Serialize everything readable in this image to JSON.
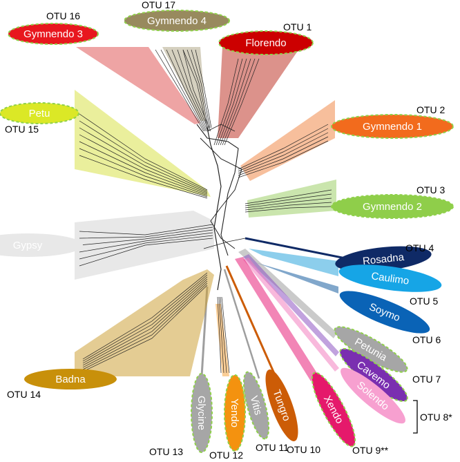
{
  "clades": [
    {
      "key": "florendo",
      "name": "Florendo",
      "otu": "OTU 1",
      "fill": "#cc0000",
      "fan": "#c0392b",
      "dashed": true
    },
    {
      "key": "gymnendo1",
      "name": "Gymnendo 1",
      "otu": "OTU 2",
      "fill": "#f26b1d",
      "fan": "#f08a4b",
      "dashed": true
    },
    {
      "key": "gymnendo2",
      "name": "Gymnendo 2",
      "otu": "OTU 3",
      "fill": "#8fce4a",
      "fan": "#9fd06a",
      "dashed": true
    },
    {
      "key": "rosadna",
      "name": "Rosadna",
      "otu": "OTU 4",
      "fill": "#0f2a66",
      "fan": "#0f2a66",
      "dashed": false
    },
    {
      "key": "caulimo",
      "name": "Caulimo",
      "otu": "",
      "fill": "#16a5e6",
      "fan": "#2da5dd",
      "dashed": false
    },
    {
      "key": "soymo",
      "name": "Soymo",
      "otu": "OTU 5",
      "fill": "#0a63b6",
      "fan": "#1a5fa0",
      "dashed": false
    },
    {
      "key": "petunia",
      "name": "Petunia",
      "otu": "OTU 6",
      "fill": "#a6a6a6",
      "fan": "#9e9e9e",
      "dashed": true
    },
    {
      "key": "cavemo",
      "name": "Cavemo",
      "otu": "OTU 7",
      "fill": "#7a2fb0",
      "fan": "#8e55c2",
      "dashed": true
    },
    {
      "key": "solendo",
      "name": "Solendo",
      "otu": "",
      "fill": "#f7a0d0",
      "fan": "#f27fc0",
      "dashed": false
    },
    {
      "key": "xendo",
      "name": "Xendo",
      "otu": "OTU 9**",
      "fill": "#e5196b",
      "fan": "#e8207a",
      "dashed": true
    },
    {
      "key": "tungro",
      "name": "Tungro",
      "otu": "OTU 10",
      "fill": "#cc5c06",
      "fan": "#cc5c06",
      "dashed": false
    },
    {
      "key": "vitis",
      "name": "Vitis",
      "otu": "OTU 11",
      "fill": "#a6a6a6",
      "fan": "#9e9e9e",
      "dashed": true
    },
    {
      "key": "yendo",
      "name": "Yendo",
      "otu": "OTU 12",
      "fill": "#f4920f",
      "fan": "#f5a640",
      "dashed": true
    },
    {
      "key": "glycine",
      "name": "Glycine",
      "otu": "OTU 13",
      "fill": "#a6a6a6",
      "fan": "#9e9e9e",
      "dashed": true
    },
    {
      "key": "badna",
      "name": "Badna",
      "otu": "OTU 14",
      "fill": "#c8900a",
      "fan": "#cda23a",
      "dashed": false
    },
    {
      "key": "gypsy",
      "name": "Gypsy",
      "otu": "",
      "fill": "#e8e8e8",
      "fan": "#d6d6d6",
      "dashed": false
    },
    {
      "key": "petu",
      "name": "Petu",
      "otu": "OTU 15",
      "fill": "#dbe826",
      "fan": "#d8e24a",
      "dashed": true
    },
    {
      "key": "gymnendo3",
      "name": "Gymnendo 3",
      "otu": "OTU 16",
      "fill": "#e8171e",
      "fan": "#e05a5a",
      "dashed": true
    },
    {
      "key": "gymnendo4",
      "name": "Gymnendo 4",
      "otu": "OTU 17",
      "fill": "#988a5e",
      "fan": "#b3a98a",
      "dashed": true
    }
  ],
  "group_label": "OTU 8*",
  "colors": {
    "dash": "#8fd14a",
    "tree": "#222222",
    "gypsy_text": "#222222",
    "petu_text": "#666666"
  }
}
